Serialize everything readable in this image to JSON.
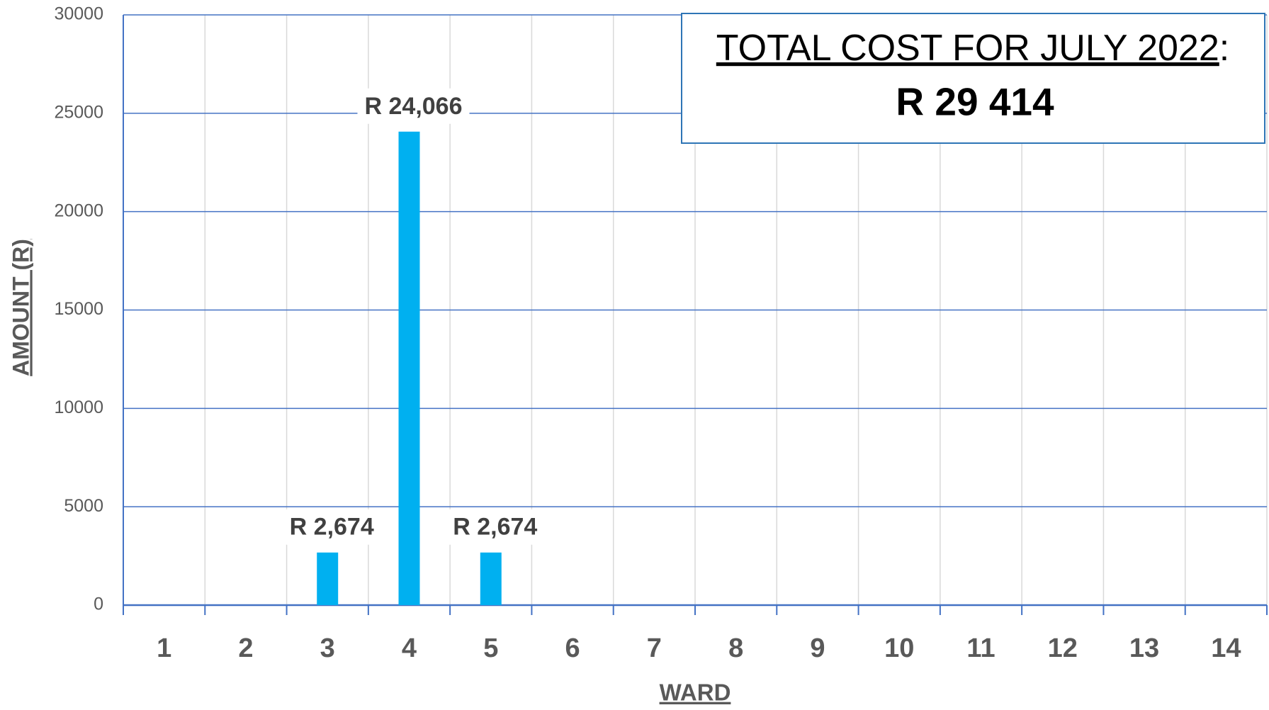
{
  "chart_data": {
    "type": "bar",
    "categories": [
      "1",
      "2",
      "3",
      "4",
      "5",
      "6",
      "7",
      "8",
      "9",
      "10",
      "11",
      "12",
      "13",
      "14"
    ],
    "values": [
      null,
      null,
      2674,
      24066,
      2674,
      null,
      null,
      null,
      null,
      null,
      null,
      null,
      null,
      null
    ],
    "value_labels": [
      null,
      null,
      "R 2,674",
      "R 24,066",
      "R 2,674",
      null,
      null,
      null,
      null,
      null,
      null,
      null,
      null,
      null
    ],
    "color": "#00b0f0",
    "ylim": [
      0,
      30000
    ],
    "yticks": [
      0,
      5000,
      10000,
      15000,
      20000,
      25000,
      30000
    ],
    "grid": true,
    "x_label": "WARD",
    "y_label": "AMOUNT (R)",
    "annotation": {
      "text": "TOTAL COST FOR JULY 2022",
      "suffix": ":",
      "total": "R 29 414"
    }
  }
}
